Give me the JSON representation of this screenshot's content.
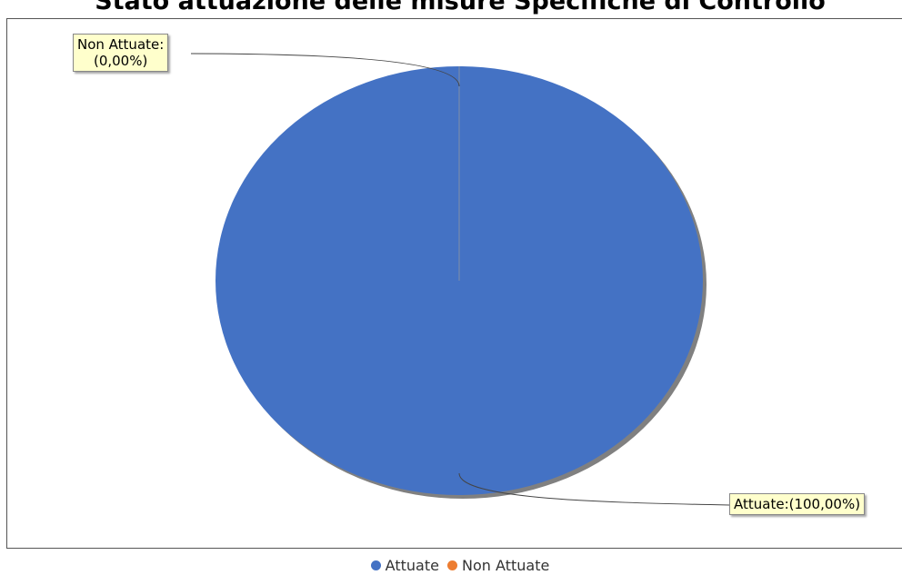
{
  "chart_data": {
    "type": "pie",
    "title": "Stato attuazione delle misure Specifiche di Controllo",
    "slices": [
      {
        "name": "Attuate",
        "value": 100.0,
        "label": "Attuate:(100,00%)",
        "color": "#4472c4"
      },
      {
        "name": "Non Attuate",
        "value": 0.0,
        "label_line1": "Non Attuate:",
        "label_line2": "(0,00%)",
        "color": "#ed7d31"
      }
    ],
    "legend": {
      "placement": "bottom",
      "items": [
        {
          "name": "Attuate",
          "color": "#4472c4"
        },
        {
          "name": "Non Attuate",
          "color": "#ed7d31"
        }
      ]
    }
  },
  "colors": {
    "callout_bg": "#ffffcc",
    "shadow": "#808080"
  }
}
